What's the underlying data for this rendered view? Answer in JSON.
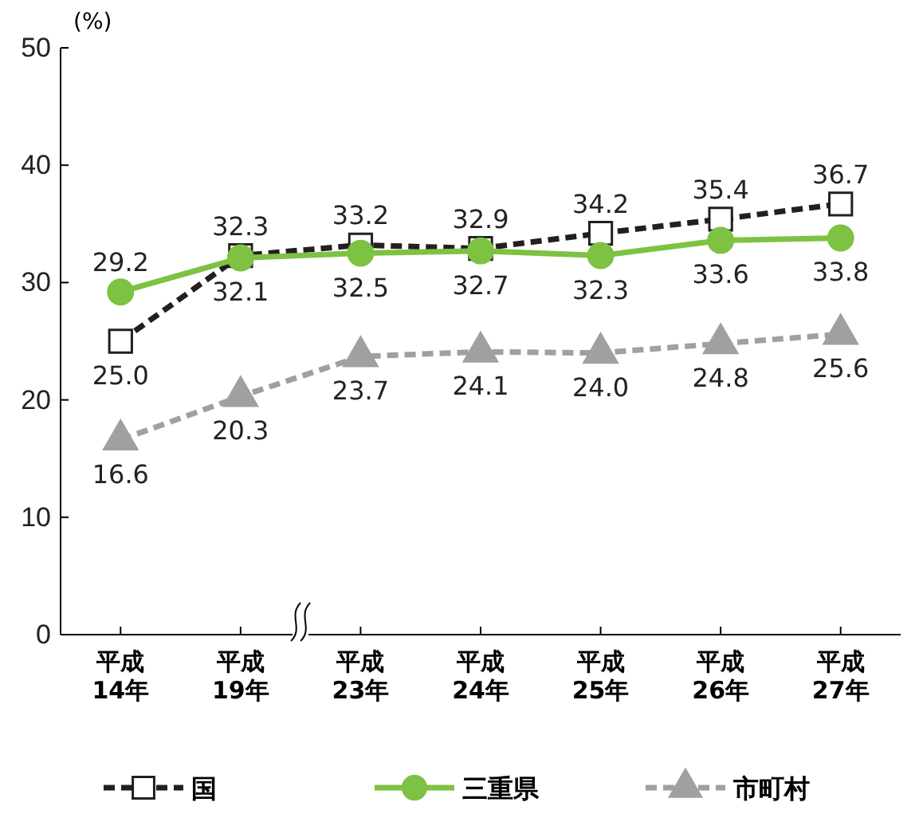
{
  "chart_data": {
    "type": "line",
    "ylabel": "(%)",
    "categories": [
      "平成\n14年",
      "平成\n19年",
      "平成\n23年",
      "平成\n24年",
      "平成\n25年",
      "平成\n26年",
      "平成\n27年"
    ],
    "ylim": [
      0,
      50
    ],
    "yticks": [
      0,
      10,
      20,
      30,
      40,
      50
    ],
    "grid": false,
    "legend": "bottom",
    "series": [
      {
        "name": "国",
        "color": "#231f20",
        "marker": "square",
        "line_style": "dashed",
        "values": [
          25.0,
          32.3,
          33.2,
          32.9,
          34.2,
          35.4,
          36.7
        ],
        "value_labels": [
          "25.0",
          "32.3",
          "33.2",
          "32.9",
          "34.2",
          "35.4",
          "36.7"
        ]
      },
      {
        "name": "三重県",
        "color": "#7dc242",
        "marker": "circle",
        "line_style": "solid",
        "values": [
          29.2,
          32.1,
          32.5,
          32.7,
          32.3,
          33.6,
          33.8
        ],
        "value_labels": [
          "29.2",
          "32.1",
          "32.5",
          "32.7",
          "32.3",
          "33.6",
          "33.8"
        ]
      },
      {
        "name": "市町村",
        "color": "#a0a0a0",
        "marker": "triangle",
        "line_style": "dashed",
        "values": [
          16.6,
          20.3,
          23.7,
          24.1,
          24.0,
          24.8,
          25.6
        ],
        "value_labels": [
          "16.6",
          "20.3",
          "23.7",
          "24.1",
          "24.0",
          "24.8",
          "25.6"
        ]
      }
    ]
  }
}
